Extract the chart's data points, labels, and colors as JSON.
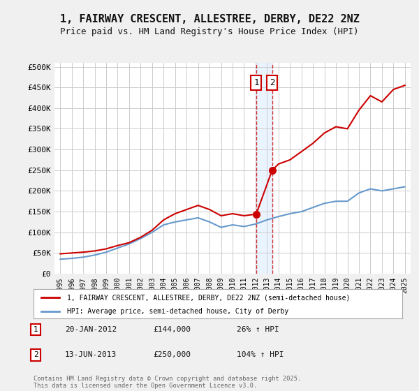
{
  "title": "1, FAIRWAY CRESCENT, ALLESTREE, DERBY, DE22 2NZ",
  "subtitle": "Price paid vs. HM Land Registry's House Price Index (HPI)",
  "ylim": [
    0,
    510000
  ],
  "yticks": [
    0,
    50000,
    100000,
    150000,
    200000,
    250000,
    300000,
    350000,
    400000,
    450000,
    500000
  ],
  "ytick_labels": [
    "£0",
    "£50K",
    "£100K",
    "£150K",
    "£200K",
    "£250K",
    "£300K",
    "£350K",
    "£400K",
    "£450K",
    "£500K"
  ],
  "bg_color": "#f0f0f0",
  "plot_bg_color": "#ffffff",
  "grid_color": "#cccccc",
  "red_color": "#cc0000",
  "blue_color": "#6699cc",
  "transaction1_date": 2012.06,
  "transaction1_price": 144000,
  "transaction1_label": "1",
  "transaction2_date": 2013.45,
  "transaction2_price": 250000,
  "transaction2_label": "2",
  "legend_red": "1, FAIRWAY CRESCENT, ALLESTREE, DERBY, DE22 2NZ (semi-detached house)",
  "legend_blue": "HPI: Average price, semi-detached house, City of Derby",
  "annotations": [
    {
      "label": "1",
      "date": "20-JAN-2012",
      "price": "£144,000",
      "pct": "26% ↑ HPI"
    },
    {
      "label": "2",
      "date": "13-JUN-2013",
      "price": "£250,000",
      "pct": "104% ↑ HPI"
    }
  ],
  "footer": "Contains HM Land Registry data © Crown copyright and database right 2025.\nThis data is licensed under the Open Government Licence v3.0.",
  "red_line_data": {
    "x": [
      1995,
      1996,
      1997,
      1998,
      1999,
      2000,
      2001,
      2002,
      2003,
      2004,
      2005,
      2006,
      2007,
      2008,
      2009,
      2010,
      2011,
      2012.06,
      2013.45,
      2014,
      2015,
      2016,
      2017,
      2018,
      2019,
      2020,
      2021,
      2022,
      2023,
      2024,
      2025
    ],
    "y": [
      48000,
      50000,
      52000,
      55000,
      60000,
      68000,
      75000,
      88000,
      105000,
      130000,
      145000,
      155000,
      165000,
      155000,
      140000,
      145000,
      140000,
      144000,
      250000,
      265000,
      275000,
      295000,
      315000,
      340000,
      355000,
      350000,
      395000,
      430000,
      415000,
      445000,
      455000
    ]
  },
  "blue_line_data": {
    "x": [
      1995,
      1996,
      1997,
      1998,
      1999,
      2000,
      2001,
      2002,
      2003,
      2004,
      2005,
      2006,
      2007,
      2008,
      2009,
      2010,
      2011,
      2012,
      2013,
      2014,
      2015,
      2016,
      2017,
      2018,
      2019,
      2020,
      2021,
      2022,
      2023,
      2024,
      2025
    ],
    "y": [
      35000,
      37000,
      40000,
      45000,
      52000,
      62000,
      72000,
      85000,
      100000,
      118000,
      125000,
      130000,
      135000,
      125000,
      112000,
      118000,
      114000,
      120000,
      130000,
      138000,
      145000,
      150000,
      160000,
      170000,
      175000,
      175000,
      195000,
      205000,
      200000,
      205000,
      210000
    ]
  },
  "xtick_years": [
    1995,
    1996,
    1997,
    1998,
    1999,
    2000,
    2001,
    2002,
    2003,
    2004,
    2005,
    2006,
    2007,
    2008,
    2009,
    2010,
    2011,
    2012,
    2013,
    2014,
    2015,
    2016,
    2017,
    2018,
    2019,
    2020,
    2021,
    2022,
    2023,
    2024,
    2025
  ],
  "xlim": [
    1994.5,
    2025.5
  ]
}
